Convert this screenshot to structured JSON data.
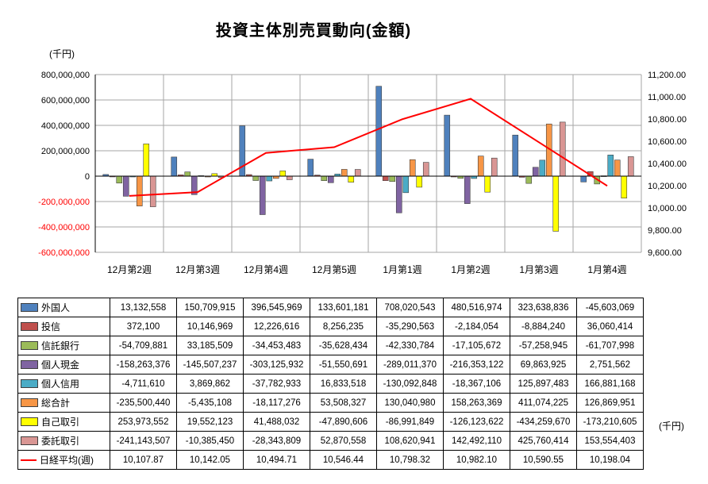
{
  "title": "投資主体別売買動向(金額)",
  "left_axis_unit": "(千円)",
  "right_axis_unit": "(千円)",
  "chart_data": {
    "type": "bar",
    "subtype": "grouped bar chart with right-axis line overlay and data table",
    "title": "投資主体別売買動向(金額)",
    "grid": true,
    "categories": [
      "12月第2週",
      "12月第3週",
      "12月第4週",
      "12月第5週",
      "1月第1週",
      "1月第2週",
      "1月第3週",
      "1月第4週"
    ],
    "left_axis": {
      "min": -600000000,
      "max": 800000000,
      "step": 200000000,
      "unit": "(千円)",
      "negative_label_color": "#FF0000"
    },
    "right_axis": {
      "min": 9600,
      "max": 11200,
      "step": 200,
      "unit": "(千円)"
    },
    "series": [
      {
        "name": "外国人",
        "type": "bar",
        "color": "#4F81BD",
        "values": [
          13132558,
          150709915,
          396545969,
          133601181,
          708020543,
          480516974,
          323638836,
          -45603069
        ]
      },
      {
        "name": "投信",
        "type": "bar",
        "color": "#C0504D",
        "values": [
          372100,
          10146969,
          12226616,
          8256235,
          -35290563,
          -2184054,
          -8884240,
          36060414
        ]
      },
      {
        "name": "信託銀行",
        "type": "bar",
        "color": "#9BBB59",
        "values": [
          -54709881,
          33185509,
          -34453483,
          -35628434,
          -42330784,
          -17105672,
          -57258945,
          -61707998
        ]
      },
      {
        "name": "個人現金",
        "type": "bar",
        "color": "#8064A2",
        "values": [
          -158263376,
          -145507237,
          -303125932,
          -51550691,
          -289011370,
          -216353122,
          69863925,
          2751562
        ]
      },
      {
        "name": "個人信用",
        "type": "bar",
        "color": "#4BACC6",
        "values": [
          -4711610,
          3869862,
          -37782933,
          16833518,
          -130092848,
          -18367106,
          125897483,
          166881168
        ]
      },
      {
        "name": "総合計",
        "type": "bar",
        "color": "#F79646",
        "values": [
          -235500440,
          -5435108,
          -18117276,
          53508327,
          130040980,
          158263369,
          411074225,
          126869951
        ]
      },
      {
        "name": "自己取引",
        "type": "bar",
        "color": "#FFFF00",
        "values": [
          253973552,
          19552123,
          41488032,
          -47890606,
          -86991849,
          -126123622,
          -434259670,
          -173210605
        ]
      },
      {
        "name": "委託取引",
        "type": "bar",
        "color": "#D99694",
        "values": [
          -241143507,
          -10385450,
          -28343809,
          52870558,
          108620941,
          142492110,
          425760414,
          153554403
        ]
      },
      {
        "name": "日経平均(週)",
        "type": "line",
        "axis": "right",
        "color": "#FF0000",
        "decimals": 2,
        "values": [
          10107.87,
          10142.05,
          10494.71,
          10546.44,
          10798.32,
          10982.1,
          10590.55,
          10198.04
        ]
      }
    ]
  }
}
